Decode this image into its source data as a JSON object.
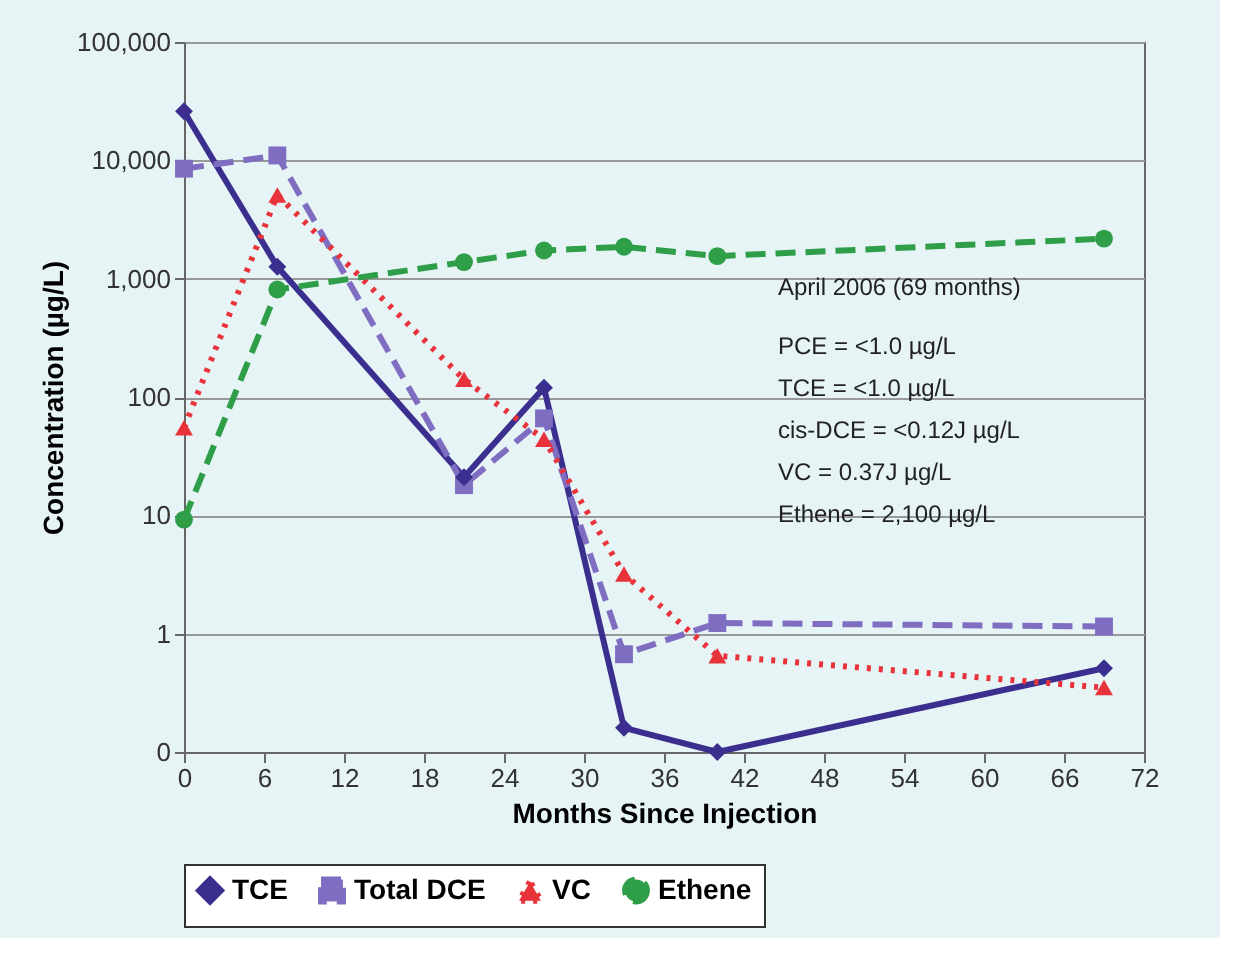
{
  "chart_data": {
    "type": "line",
    "xlabel": "Months Since Injection",
    "ylabel": "Concentration (µg/L)",
    "log": "y",
    "grid": "y",
    "legend": "bottom",
    "xlim": [
      0,
      72
    ],
    "xticks": [
      0,
      6,
      12,
      18,
      24,
      30,
      36,
      42,
      48,
      54,
      60,
      66,
      72
    ],
    "ylim": [
      0.1,
      100000
    ],
    "yticks": [
      {
        "value": 0.1,
        "label": "0"
      },
      1,
      10,
      100,
      {
        "value": 1000,
        "label": "1,000"
      },
      {
        "value": 10000,
        "label": "10,000"
      },
      {
        "value": 100000,
        "label": "100,000"
      }
    ],
    "x": [
      0,
      7,
      21,
      27,
      33,
      40,
      69
    ],
    "series": [
      {
        "name": "TCE",
        "color": "#3a2f8f",
        "marker": "diamond",
        "line_style": "solid",
        "values": [
          26000,
          1260,
          21,
          120,
          0.16,
          0.1,
          0.51
        ]
      },
      {
        "name": "Total DCE",
        "color": "#7f6dc2",
        "marker": "square",
        "line_style": "dashed",
        "values": [
          8500,
          11000,
          18,
          66,
          0.67,
          1.23,
          1.15
        ]
      },
      {
        "name": "VC",
        "color": "#e8333a",
        "marker": "triangle",
        "line_style": "dotted",
        "values": [
          55,
          5100,
          141,
          44,
          3.2,
          0.65,
          0.35
        ]
      },
      {
        "name": "Ethene",
        "color": "#2e9e48",
        "marker": "circle",
        "line_style": "dashed",
        "values": [
          9.2,
          810,
          1380,
          1730,
          1860,
          1550,
          2180
        ]
      }
    ],
    "annotations": [
      "April 2006 (69 months)",
      "PCE = <1.0 µg/L",
      "TCE = <1.0 µg/L",
      "cis-DCE = <0.12J µg/L",
      "VC = 0.37J µg/L",
      "Ethene = 2,100 µg/L"
    ]
  }
}
